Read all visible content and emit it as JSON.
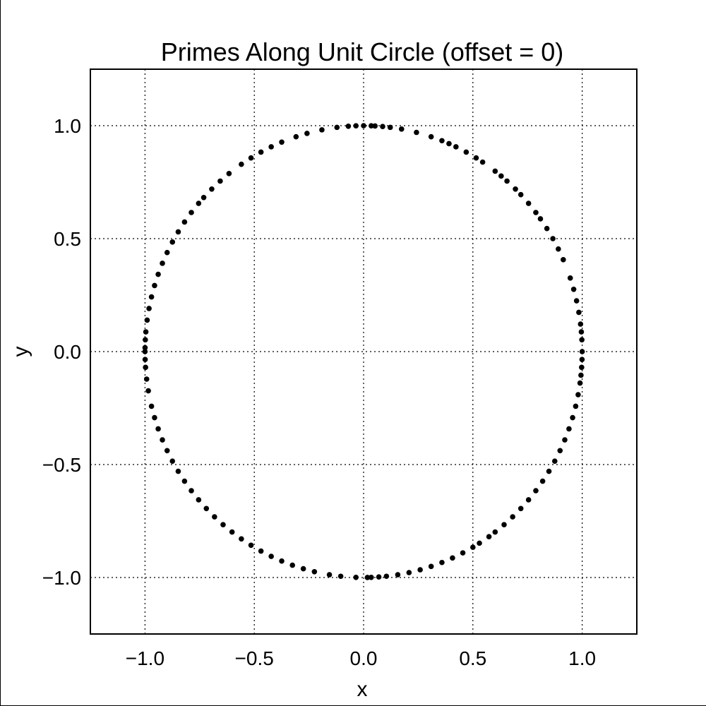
{
  "chart_data": {
    "type": "scatter",
    "title": "Primes Along Unit Circle (offset = 0)",
    "xlabel": "x",
    "ylabel": "y",
    "xlim": [
      -1.25,
      1.25
    ],
    "ylim": [
      -1.25,
      1.25
    ],
    "xticks": [
      -1.0,
      -0.5,
      0.0,
      0.5,
      1.0
    ],
    "yticks": [
      -1.0,
      -0.5,
      0.0,
      0.5,
      1.0
    ],
    "xtick_labels": [
      "−1.0",
      "−0.5",
      "0.0",
      "0.5",
      "1.0"
    ],
    "ytick_labels": [
      "−1.0",
      "−0.5",
      "0.0",
      "0.5",
      "1.0"
    ],
    "grid": true,
    "grid_style": "dotted",
    "marker_color": "#000000",
    "angles_deg": [
      0,
      3,
      5,
      7,
      10,
      13,
      16,
      19,
      24,
      27,
      30,
      33,
      36,
      38,
      41,
      44,
      46,
      49,
      51,
      53,
      57,
      59,
      62,
      65,
      67,
      69,
      72,
      76,
      80,
      83,
      85,
      87,
      88,
      90,
      92,
      94,
      97,
      101,
      105,
      108,
      112,
      115,
      118,
      121,
      124,
      128,
      131,
      134,
      137,
      139,
      142,
      145,
      148,
      151,
      154,
      157,
      160,
      163,
      166,
      169,
      172,
      175,
      177,
      179,
      180,
      182,
      184,
      187,
      190,
      194,
      197,
      200,
      203,
      206,
      209,
      212,
      215,
      218,
      221,
      224,
      227,
      230,
      233,
      236,
      239,
      242,
      245,
      248,
      251,
      254,
      257,
      261,
      264,
      268,
      271,
      272,
      274,
      276,
      279,
      282,
      285,
      288,
      291,
      294,
      297,
      300,
      302,
      305,
      307,
      310,
      313,
      316,
      319,
      322,
      325,
      328,
      331,
      334,
      337,
      340,
      343,
      346,
      349,
      352,
      354,
      356,
      358
    ]
  }
}
